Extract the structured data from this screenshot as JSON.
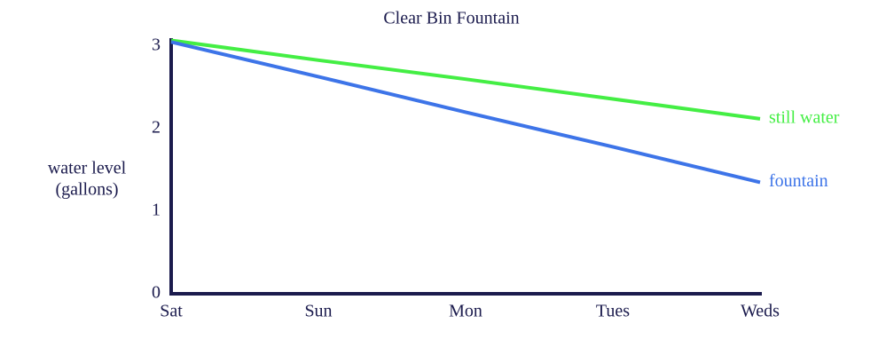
{
  "chart_data": {
    "type": "line",
    "title": "Clear Bin Fountain",
    "ylabel": [
      "water level",
      "(gallons)"
    ],
    "categories": [
      "Sat",
      "Sun",
      "Mon",
      "Tues",
      "Weds"
    ],
    "series": [
      {
        "name": "still water",
        "color": "#44ee44",
        "values": [
          3.07,
          2.83,
          2.6,
          2.36,
          2.12
        ]
      },
      {
        "name": "fountain",
        "color": "#3d74e8",
        "values": [
          3.05,
          2.63,
          2.2,
          1.78,
          1.35
        ]
      }
    ],
    "ylim": [
      0,
      3
    ],
    "yticks": [
      0,
      1,
      2,
      3
    ],
    "grid": false
  }
}
